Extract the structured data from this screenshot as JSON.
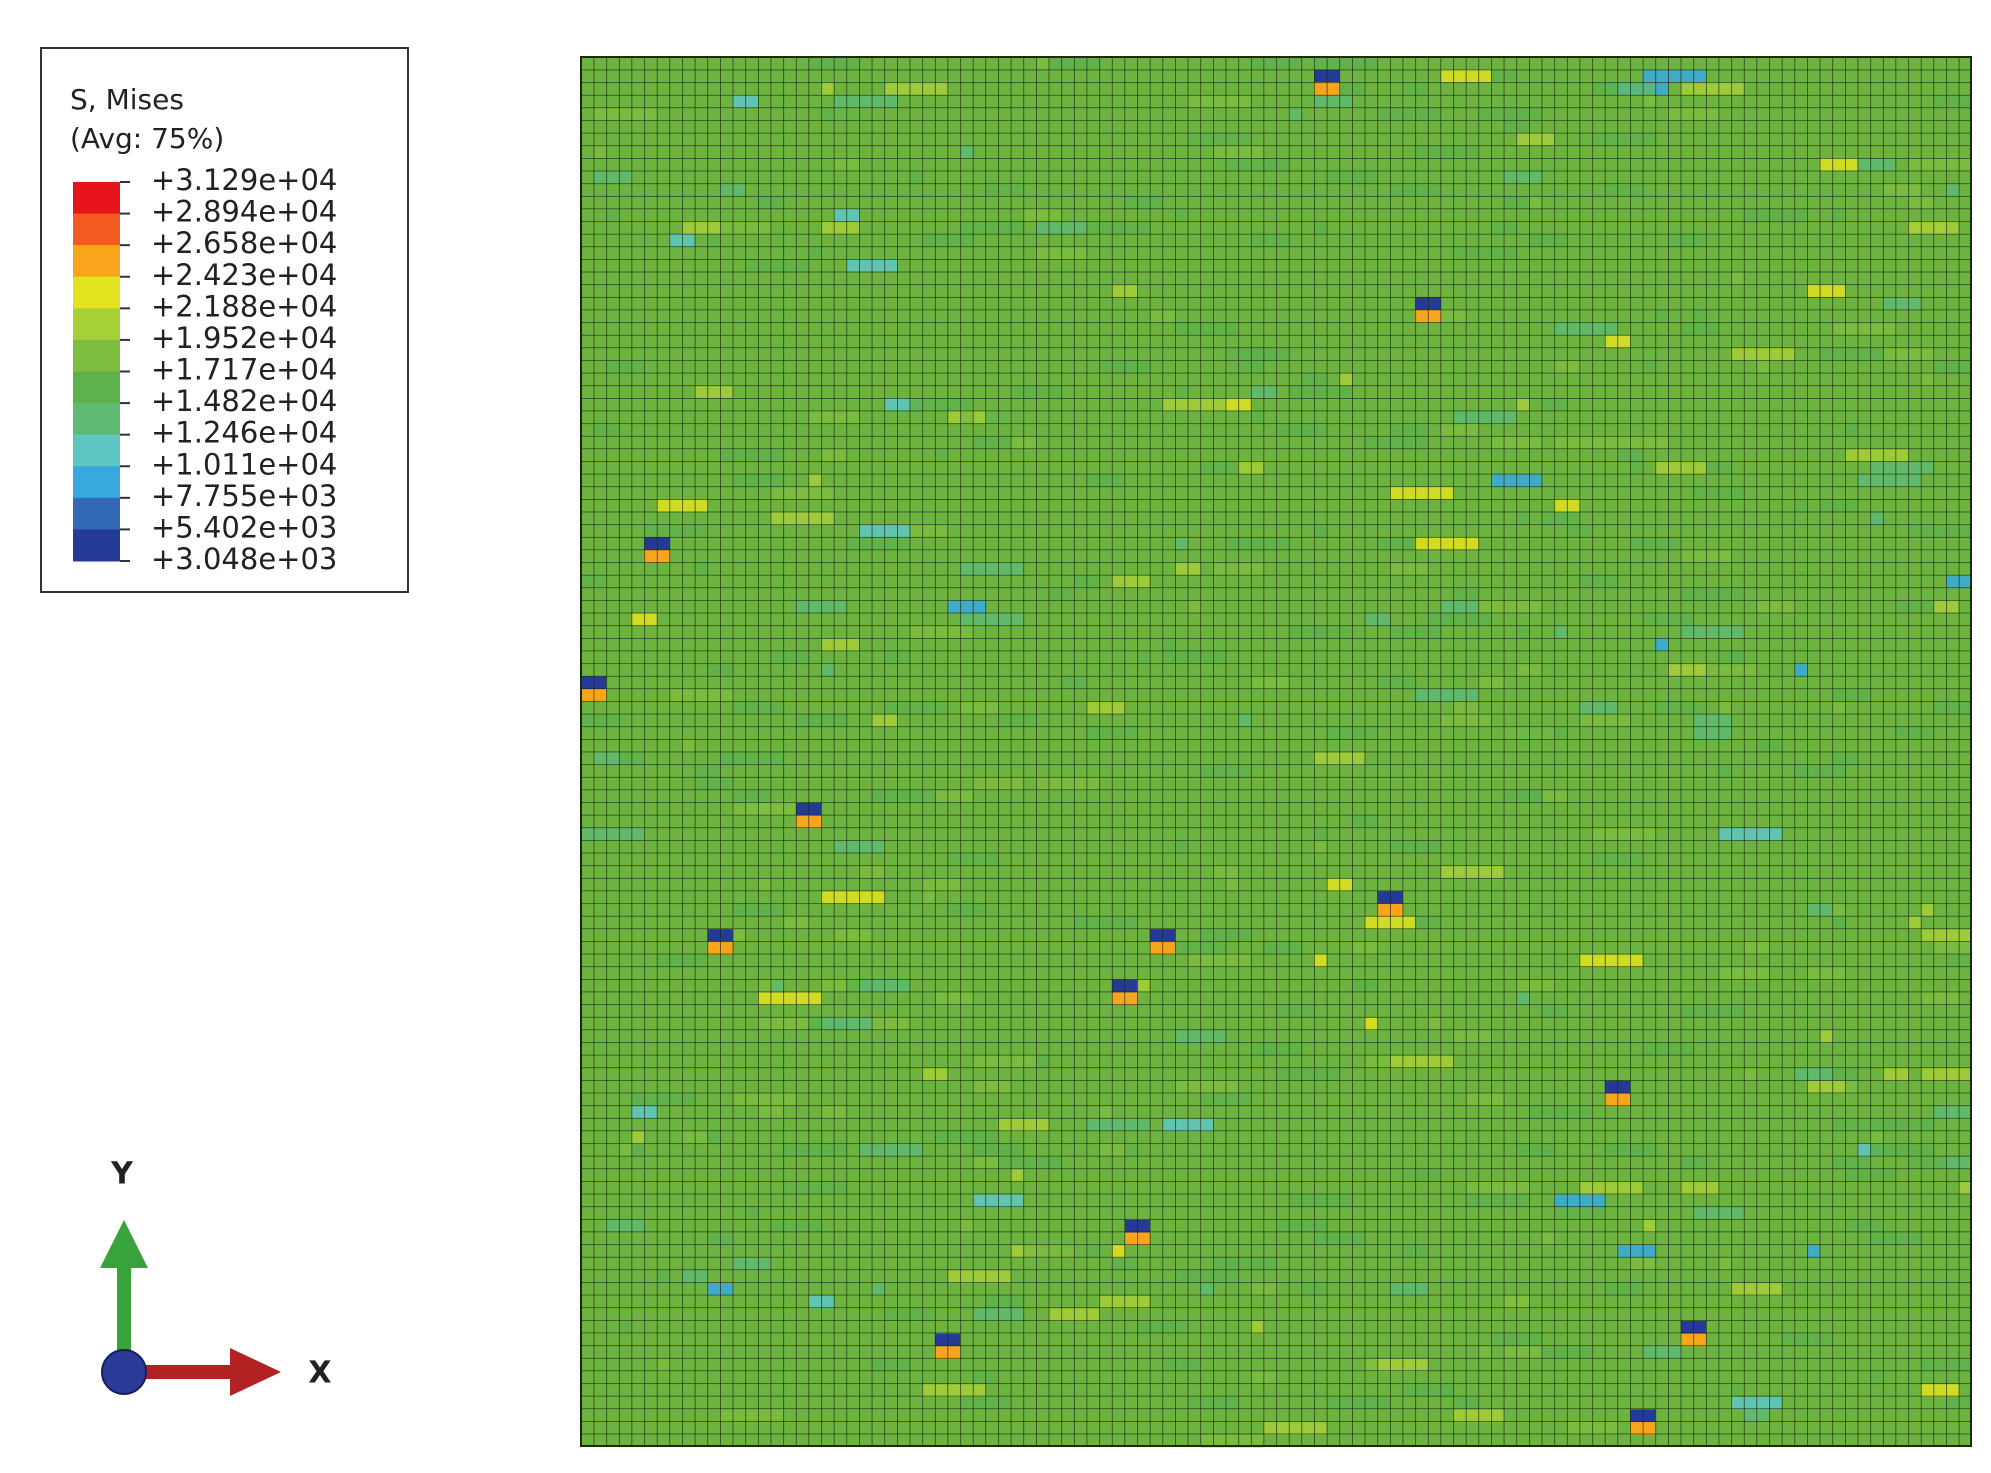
{
  "legend": {
    "title": "S, Mises",
    "subtitle": "(Avg: 75%)",
    "labels": [
      "+3.129e+04",
      "+2.894e+04",
      "+2.658e+04",
      "+2.423e+04",
      "+2.188e+04",
      "+1.952e+04",
      "+1.717e+04",
      "+1.482e+04",
      "+1.246e+04",
      "+1.011e+04",
      "+7.755e+03",
      "+5.402e+03",
      "+3.048e+03"
    ],
    "colors": [
      "#e8141c",
      "#f25c20",
      "#f9a51b",
      "#e2e21e",
      "#a6cf38",
      "#7dbd40",
      "#5fb14b",
      "#5fba72",
      "#5ec7c4",
      "#37a9de",
      "#3268b5",
      "#253a96"
    ]
  },
  "triad": {
    "y_label": "Y",
    "x_label": "X"
  }
}
